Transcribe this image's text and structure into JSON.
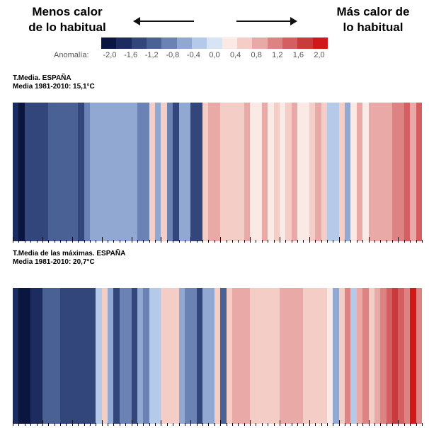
{
  "header": {
    "left_line1": "Menos calor",
    "left_line2": "de lo habitual",
    "right_line1": "Más calor de",
    "right_line2": "lo habitual"
  },
  "legend": {
    "label": "Anomalía:",
    "ticks": [
      "-2,0",
      "-1,6",
      "-1,2",
      "-0,8",
      "-0,4",
      "0,0",
      "0,4",
      "0,8",
      "1,2",
      "1,6",
      "2,0"
    ],
    "colors": [
      "#0b1640",
      "#1d2c60",
      "#32467c",
      "#4a6196",
      "#6a82b4",
      "#90a8d2",
      "#b4cae8",
      "#d6e4f5",
      "#fbe9e6",
      "#f4cdc6",
      "#e9a9a6",
      "#de8384",
      "#d45e61",
      "#c83a3c",
      "#d01818"
    ]
  },
  "chart_data": [
    {
      "type": "heatmap",
      "title": "T.Media. ESPAÑA",
      "subtitle": "Media 1981-2010: 15,1°C",
      "x_description": "years (one stripe per year)",
      "value_range": [
        -2.0,
        2.0
      ],
      "values": [
        -1.5,
        -1.9,
        -1.4,
        -1.4,
        -1.4,
        -1.4,
        -1.2,
        -1.2,
        -1.2,
        -1.1,
        -1.1,
        -1.3,
        -0.7,
        -0.6,
        -0.6,
        -0.5,
        -0.6,
        -0.6,
        -0.6,
        -0.6,
        -0.5,
        -0.9,
        -0.7,
        0.5,
        -0.6,
        0.5,
        -0.7,
        -1.3,
        -0.5,
        -0.5,
        -1.3,
        -1.4,
        0.5,
        0.8,
        0.8,
        0.5,
        0.5,
        0.5,
        0.5,
        0.7,
        0.3,
        0.3,
        0.7,
        0.3,
        0.5,
        0.3,
        0.5,
        0.9,
        0.3,
        0.3,
        0.6,
        0.7,
        0.5,
        -0.4,
        -0.4,
        0.6,
        -0.5,
        0.3,
        0.9,
        0.3,
        0.8,
        0.8,
        0.8,
        0.8,
        1.0,
        1.0,
        1.2,
        0.9,
        1.4
      ]
    },
    {
      "type": "heatmap",
      "title": "T.Media de las máximas. ESPAÑA",
      "subtitle": "Media 1981-2010: 20,7°C",
      "x_description": "years (one stripe per year)",
      "value_range": [
        -2.0,
        2.0
      ],
      "values": [
        -1.6,
        -2.0,
        -2.0,
        -1.5,
        -1.5,
        -1.2,
        -1.2,
        -1.2,
        -1.3,
        -1.3,
        -1.3,
        -1.3,
        -1.3,
        -1.3,
        -0.3,
        0.5,
        -0.5,
        -1.3,
        -0.8,
        -0.8,
        -1.3,
        -0.6,
        -0.7,
        -0.3,
        -0.3,
        0.5,
        0.6,
        0.6,
        -0.6,
        -0.8,
        -0.8,
        -1.3,
        -0.6,
        -0.5,
        0.5,
        -1.2,
        0.5,
        0.7,
        0.7,
        0.7,
        0.5,
        0.5,
        0.5,
        0.5,
        0.5,
        0.8,
        0.8,
        0.8,
        0.8,
        0.5,
        0.5,
        0.5,
        0.5,
        0.3,
        -0.5,
        0.6,
        1.0,
        -0.4,
        0.7,
        1.0,
        0.4,
        0.7,
        1.0,
        1.3,
        1.6,
        1.2,
        1.0,
        1.8,
        1.0
      ]
    }
  ]
}
